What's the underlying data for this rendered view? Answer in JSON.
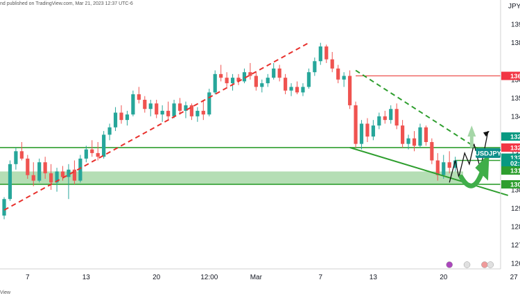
{
  "header": {
    "publisher_text": "nd published on TradingView.com, Mar 21, 2023 12:37 UTC-6"
  },
  "footer": {
    "brand_text": "View"
  },
  "colors": {
    "bull": "#26a69a",
    "bear": "#ef5350",
    "support_zone": "#a8d8a8",
    "green_line": "#2e9e2e",
    "red_line": "#e8302c",
    "arrow_green": "#3fae49",
    "arrow_light": "#a5d6a7",
    "pattern_black": "#111111"
  },
  "chart_data": {
    "type": "candlestick",
    "symbol": "USDJPY",
    "currency_unit": "JPY",
    "ylim": [
      125.7,
      139.8
    ],
    "y_ticks": [
      126,
      127,
      128,
      129,
      130,
      131,
      132,
      134,
      135,
      136,
      138,
      139
    ],
    "y_tick_labels": [
      "126",
      "127",
      "128",
      "129",
      "130",
      "131",
      "132",
      "134",
      "135",
      "136",
      "138",
      "139"
    ],
    "x_ticks": [
      {
        "index": 4,
        "label": "7"
      },
      {
        "index": 14,
        "label": "13"
      },
      {
        "index": 26,
        "label": "20"
      },
      {
        "index": 35,
        "label": "12:00"
      },
      {
        "index": 43,
        "label": "Mar"
      },
      {
        "index": 54,
        "label": "7"
      },
      {
        "index": 63,
        "label": "13"
      },
      {
        "index": 75,
        "label": "20"
      },
      {
        "index": 87,
        "label": "27"
      }
    ],
    "candles": [
      [
        128.6,
        129.6,
        128.4,
        129.5
      ],
      [
        129.5,
        131.6,
        129.4,
        131.4
      ],
      [
        131.4,
        132.3,
        131.1,
        132.1
      ],
      [
        132.1,
        132.6,
        131.6,
        131.7
      ],
      [
        131.7,
        131.9,
        130.6,
        130.8
      ],
      [
        130.8,
        131.5,
        130.2,
        130.5
      ],
      [
        130.5,
        131.7,
        130.4,
        131.5
      ],
      [
        131.5,
        131.8,
        130.6,
        130.9
      ],
      [
        130.9,
        131.4,
        130.0,
        130.4
      ],
      [
        130.4,
        131.2,
        129.9,
        131.0
      ],
      [
        131.0,
        131.3,
        130.5,
        130.7
      ],
      [
        130.7,
        131.4,
        129.5,
        131.1
      ],
      [
        131.1,
        131.6,
        130.3,
        130.5
      ],
      [
        130.5,
        131.9,
        130.4,
        131.7
      ],
      [
        131.7,
        132.4,
        131.5,
        132.2
      ],
      [
        132.2,
        132.7,
        131.8,
        132.0
      ],
      [
        132.0,
        132.6,
        131.6,
        131.8
      ],
      [
        131.8,
        133.2,
        131.7,
        133.0
      ],
      [
        133.0,
        133.6,
        132.7,
        133.4
      ],
      [
        133.4,
        134.5,
        133.2,
        134.2
      ],
      [
        134.2,
        134.6,
        133.6,
        133.8
      ],
      [
        133.8,
        134.3,
        133.5,
        134.1
      ],
      [
        134.1,
        135.4,
        134.0,
        135.2
      ],
      [
        135.2,
        135.6,
        134.7,
        134.9
      ],
      [
        134.9,
        135.1,
        134.2,
        134.4
      ],
      [
        134.4,
        134.9,
        134.0,
        134.7
      ],
      [
        134.7,
        134.9,
        133.9,
        134.1
      ],
      [
        134.1,
        134.6,
        133.7,
        134.3
      ],
      [
        134.3,
        134.8,
        133.8,
        134.0
      ],
      [
        134.0,
        134.9,
        133.9,
        134.7
      ],
      [
        134.7,
        135.0,
        134.1,
        134.3
      ],
      [
        134.3,
        134.8,
        133.9,
        134.6
      ],
      [
        134.6,
        134.7,
        133.8,
        134.0
      ],
      [
        134.0,
        134.5,
        133.7,
        134.3
      ],
      [
        134.3,
        134.9,
        133.8,
        134.1
      ],
      [
        134.1,
        135.5,
        134.0,
        135.3
      ],
      [
        135.3,
        136.5,
        135.2,
        136.3
      ],
      [
        136.3,
        136.8,
        135.9,
        136.1
      ],
      [
        136.1,
        136.4,
        135.6,
        135.8
      ],
      [
        135.8,
        136.3,
        135.4,
        136.1
      ],
      [
        136.1,
        136.3,
        135.7,
        135.9
      ],
      [
        135.9,
        136.6,
        135.8,
        136.4
      ],
      [
        136.4,
        136.9,
        136.0,
        136.2
      ],
      [
        136.2,
        136.4,
        135.4,
        135.6
      ],
      [
        135.6,
        136.0,
        135.3,
        135.8
      ],
      [
        135.8,
        136.3,
        135.6,
        136.1
      ],
      [
        136.1,
        136.9,
        136.0,
        136.6
      ],
      [
        136.6,
        136.8,
        135.9,
        136.1
      ],
      [
        136.1,
        136.3,
        135.2,
        135.4
      ],
      [
        135.4,
        135.8,
        135.1,
        135.6
      ],
      [
        135.6,
        135.9,
        135.2,
        135.3
      ],
      [
        135.3,
        135.8,
        135.1,
        135.6
      ],
      [
        135.6,
        136.6,
        135.5,
        136.4
      ],
      [
        136.4,
        137.2,
        136.2,
        137.0
      ],
      [
        137.0,
        138.0,
        136.8,
        137.8
      ],
      [
        137.8,
        137.9,
        136.9,
        137.1
      ],
      [
        137.1,
        137.5,
        136.4,
        136.6
      ],
      [
        136.6,
        136.8,
        135.8,
        136.0
      ],
      [
        136.0,
        136.4,
        135.6,
        136.2
      ],
      [
        136.2,
        136.5,
        134.4,
        134.6
      ],
      [
        134.6,
        134.8,
        132.3,
        132.5
      ],
      [
        132.5,
        133.8,
        132.2,
        133.6
      ],
      [
        133.6,
        133.9,
        132.6,
        132.9
      ],
      [
        132.9,
        133.8,
        132.7,
        133.5
      ],
      [
        133.5,
        134.2,
        133.3,
        134.0
      ],
      [
        134.0,
        134.3,
        133.6,
        133.8
      ],
      [
        133.8,
        134.6,
        133.6,
        134.4
      ],
      [
        134.4,
        134.7,
        133.3,
        133.5
      ],
      [
        133.5,
        133.8,
        132.3,
        132.5
      ],
      [
        132.5,
        133.0,
        132.2,
        132.8
      ],
      [
        132.8,
        133.2,
        132.1,
        132.4
      ],
      [
        132.4,
        133.6,
        132.3,
        133.4
      ],
      [
        133.4,
        133.5,
        132.4,
        132.6
      ],
      [
        132.6,
        132.8,
        131.4,
        131.6
      ],
      [
        131.6,
        132.0,
        130.5,
        130.8
      ],
      [
        130.8,
        131.9,
        130.6,
        131.5
      ],
      [
        131.5,
        132.1,
        130.9,
        131.2
      ],
      [
        131.2,
        131.8,
        131.0,
        131.6
      ]
    ],
    "horizontal_levels": [
      {
        "name": "resistance",
        "value": 136.2,
        "style": "solid",
        "color": "#e8302c"
      },
      {
        "name": "upper-support",
        "value": 132.3,
        "style": "solid",
        "color": "#2e9e2e"
      },
      {
        "name": "target-level",
        "value": 131.6,
        "style": "solid",
        "color": "#2e9e2e"
      },
      {
        "name": "base-support",
        "value": 130.3,
        "style": "solid",
        "color": "#2e9e2e"
      }
    ],
    "support_zone": {
      "from": 130.3,
      "to": 131.0
    },
    "trendlines": [
      {
        "name": "rising-trendline",
        "x0": 0,
        "y0": 128.9,
        "x1": 52,
        "y1": 138.0,
        "style": "dashed",
        "color": "#e8302c"
      },
      {
        "name": "descending-trendline",
        "x0": 60,
        "y0": 136.5,
        "x1": 81,
        "y1": 132.2,
        "style": "dashed",
        "color": "#2e9e2e"
      },
      {
        "name": "wedge-lower-line",
        "x0": 59,
        "y0": 132.3,
        "x1": 86,
        "y1": 129.7,
        "style": "solid",
        "color": "#2e9e2e"
      }
    ],
    "projection_path": [
      [
        76,
        130.4
      ],
      [
        77,
        131.6
      ],
      [
        77.6,
        130.7
      ],
      [
        78.6,
        132.0
      ],
      [
        79.4,
        131.4
      ],
      [
        80.2,
        132.5
      ],
      [
        81.3,
        131.1
      ],
      [
        82.6,
        133.2
      ]
    ],
    "price_labels": [
      {
        "text": "136",
        "value": 136.2,
        "bg": "#f23645"
      },
      {
        "text": "132",
        "value": 132.9,
        "bg": "#089981"
      },
      {
        "text": "132",
        "value": 132.3,
        "bg": "#f23645"
      },
      {
        "text": "132",
        "value": 131.75,
        "bg": "#089981"
      },
      {
        "text": "02:5",
        "value": 131.45,
        "bg": "#089981"
      },
      {
        "text": "131",
        "value": 131.05,
        "bg": "#2e9e2e"
      },
      {
        "text": "130",
        "value": 130.3,
        "bg": "#2e9e2e"
      }
    ],
    "event_icons": [
      {
        "name": "lightning-icon",
        "index": 76
      },
      {
        "name": "us-flag-icon",
        "index": 79
      },
      {
        "name": "calendar-icon",
        "index": 82
      },
      {
        "name": "us-flag-icon",
        "index": 83
      }
    ]
  }
}
